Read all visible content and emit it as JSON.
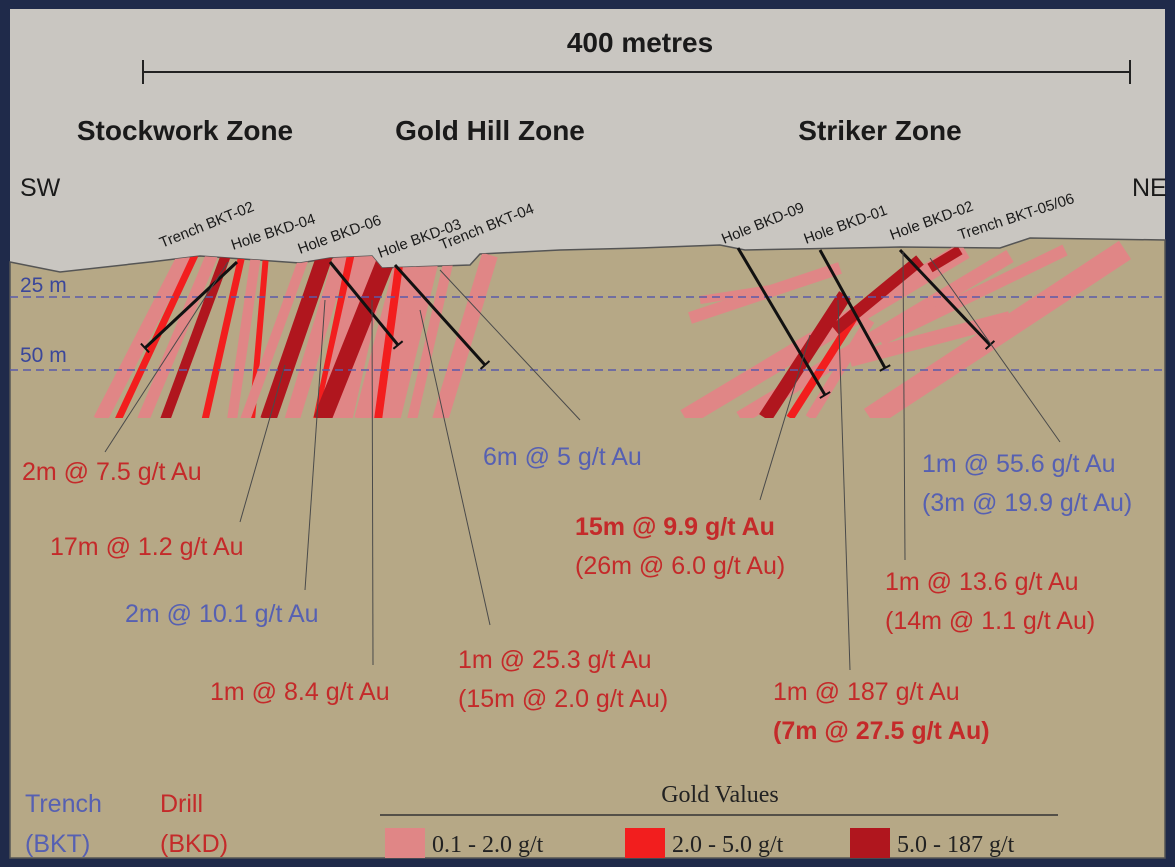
{
  "scale_label": "400 metres",
  "zones": [
    "Stockwork Zone",
    "Gold Hill Zone",
    "Striker Zone"
  ],
  "directions": [
    "SW",
    "NE"
  ],
  "depths": [
    "25 m",
    "50 m"
  ],
  "holes": [
    "Trench BKT-02",
    "Hole BKD-04",
    "Hole BKD-06",
    "Hole BKD-03",
    "Trench BKT-04",
    "Hole BKD-09",
    "Hole BKD-01",
    "Hole BKD-02",
    "Trench BKT-05/06"
  ],
  "intercepts": [
    {
      "lines": [
        "2m @ 7.5 g/t Au"
      ]
    },
    {
      "lines": [
        "17m @ 1.2 g/t Au"
      ]
    },
    {
      "lines": [
        "2m @ 10.1 g/t Au"
      ]
    },
    {
      "lines": [
        "1m @ 8.4 g/t Au"
      ]
    },
    {
      "lines": [
        "1m @ 25.3 g/t Au",
        "(15m @ 2.0 g/t Au)"
      ]
    },
    {
      "lines": [
        "6m @ 5 g/t Au"
      ]
    },
    {
      "lines": [
        "15m @ 9.9 g/t Au",
        "(26m @ 6.0 g/t Au)"
      ]
    },
    {
      "lines": [
        "1m @ 55.6 g/t Au",
        "(3m @ 19.9 g/t Au)"
      ]
    },
    {
      "lines": [
        "1m @ 13.6 g/t Au",
        "(14m @ 1.1 g/t Au)"
      ]
    },
    {
      "lines": [
        "1m @ 187 g/t Au",
        "(7m @ 27.5 g/t Au)"
      ]
    }
  ],
  "legend": {
    "trench": [
      "Trench",
      "(BKT)"
    ],
    "drill": [
      "Drill",
      "(BKD)"
    ],
    "title": "Gold Values",
    "items": [
      "0.1 - 2.0 g/t",
      "2.0 - 5.0 g/t",
      "5.0 - 187 g/t"
    ]
  }
}
